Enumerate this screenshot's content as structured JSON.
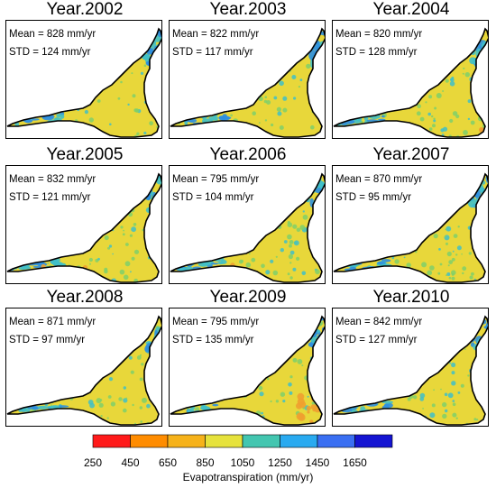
{
  "panels": [
    {
      "title": "Year.2002",
      "mean": "Mean = 828 mm/yr",
      "std": "STD = 124 mm/yr",
      "variant": 0
    },
    {
      "title": "Year.2003",
      "mean": "Mean = 822 mm/yr",
      "std": "STD = 117 mm/yr",
      "variant": 0
    },
    {
      "title": "Year.2004",
      "mean": "Mean = 820 mm/yr",
      "std": "STD = 128 mm/yr",
      "variant": 1
    },
    {
      "title": "Year.2005",
      "mean": "Mean = 832 mm/yr",
      "std": "STD = 121 mm/yr",
      "variant": 2
    },
    {
      "title": "Year.2006",
      "mean": "Mean = 795 mm/yr",
      "std": "STD = 104 mm/yr",
      "variant": 2
    },
    {
      "title": "Year.2007",
      "mean": "Mean = 870 mm/yr",
      "std": "STD = 95 mm/yr",
      "variant": 0
    },
    {
      "title": "Year.2008",
      "mean": "Mean = 871 mm/yr",
      "std": "STD = 97 mm/yr",
      "variant": 0
    },
    {
      "title": "Year.2009",
      "mean": "Mean = 795 mm/yr",
      "std": "STD = 135 mm/yr",
      "variant": 3
    },
    {
      "title": "Year.2010",
      "mean": "Mean = 842 mm/yr",
      "std": "STD = 127 mm/yr",
      "variant": 0
    }
  ],
  "legend": {
    "title": "Evapotranspiration (mm/yr)",
    "ticks": [
      "250",
      "450",
      "650",
      "850",
      "1050",
      "1250",
      "1450",
      "1650"
    ],
    "colors": [
      "#ff1a1a",
      "#ff8c00",
      "#f6b21a",
      "#e6e23c",
      "#43c6b0",
      "#29aaf0",
      "#3a6ff2",
      "#1414d2"
    ]
  },
  "colors": {
    "base": "#e8d73a",
    "green": "#7fd06a",
    "cyan": "#40c0c8",
    "blue": "#2d8fe0",
    "orange": "#f0a030",
    "outline": "#000000"
  }
}
